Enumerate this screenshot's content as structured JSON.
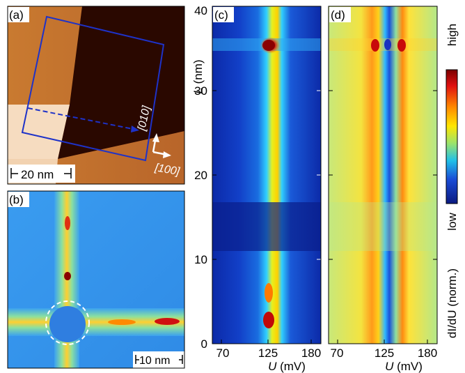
{
  "panels": {
    "a": {
      "label": "(a)",
      "scalebar": "20 nm",
      "dir_010": "[010]",
      "dir_100": "[100]"
    },
    "b": {
      "label": "(b)",
      "scalebar": "10 nm"
    },
    "c": {
      "label": "(c)"
    },
    "d": {
      "label": "(d)"
    }
  },
  "axes": {
    "y_label_var": "L",
    "y_label_unit": " (nm)",
    "y_ticks": [
      "0",
      "10",
      "20",
      "30",
      "40"
    ],
    "x_ticks_c": [
      "70",
      "125",
      "180"
    ],
    "x_ticks_d": [
      "70",
      "125",
      "180"
    ],
    "x_label_var": "U",
    "x_label_unit": " (mV)"
  },
  "colorbar": {
    "high": "high",
    "low": "low",
    "quantity": "dI/dU (norm.)",
    "colors": [
      "#8b0000",
      "#e01010",
      "#ff7a00",
      "#ffe000",
      "#9be36b",
      "#1fb8e8",
      "#1a4cd6",
      "#0c1d8a"
    ]
  },
  "colors": {
    "frame": "#1e32c8",
    "map_dark": "#0a1f8c",
    "terrace_dark": "#2a0a00",
    "terrace_light": "#c8742a"
  }
}
